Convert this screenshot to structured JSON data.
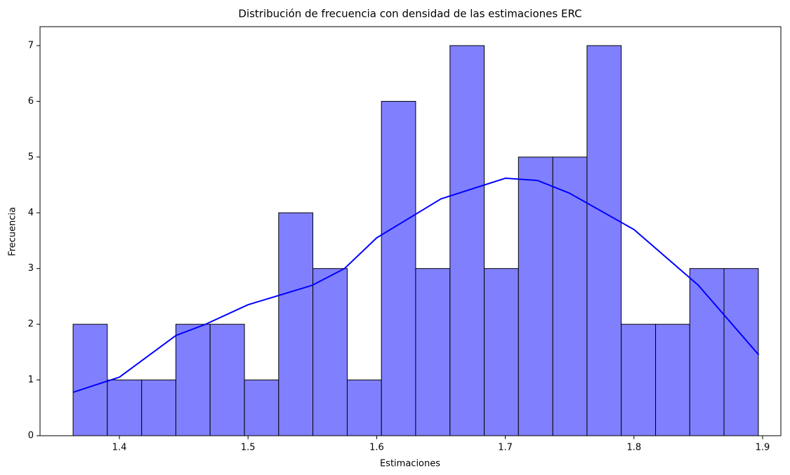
{
  "chart_data": {
    "type": "histogram",
    "title": "Distribución de frecuencia con densidad de las estimaciones ERC",
    "xlabel": "Estimaciones",
    "ylabel": "Frecuencia",
    "bins": [
      1.364,
      1.3906,
      1.4173,
      1.4439,
      1.4705,
      1.4972,
      1.5238,
      1.5504,
      1.5771,
      1.6037,
      1.6303,
      1.657,
      1.6836,
      1.7102,
      1.7369,
      1.7635,
      1.7901,
      1.8168,
      1.8434,
      1.87,
      1.8967
    ],
    "counts": [
      2,
      1,
      1,
      2,
      2,
      1,
      4,
      3,
      1,
      6,
      3,
      7,
      3,
      5,
      5,
      7,
      2,
      2,
      3,
      3
    ],
    "color": "#8080ff",
    "edgecolor": "#000000",
    "kde": {
      "x": [
        1.364,
        1.4,
        1.444,
        1.467,
        1.5,
        1.55,
        1.575,
        1.6,
        1.65,
        1.7,
        1.725,
        1.75,
        1.8,
        1.85,
        1.897
      ],
      "y": [
        0.78,
        1.05,
        1.8,
        2.0,
        2.35,
        2.7,
        3.0,
        3.55,
        4.25,
        4.62,
        4.58,
        4.35,
        3.7,
        2.7,
        1.45
      ],
      "color": "#0000ff"
    },
    "xlim": [
      1.3383,
      1.9142
    ],
    "ylim": [
      0,
      7.34
    ],
    "xticks": [
      1.4,
      1.5,
      1.6,
      1.7,
      1.8,
      1.9
    ],
    "yticks": [
      0,
      1,
      2,
      3,
      4,
      5,
      6,
      7
    ]
  }
}
